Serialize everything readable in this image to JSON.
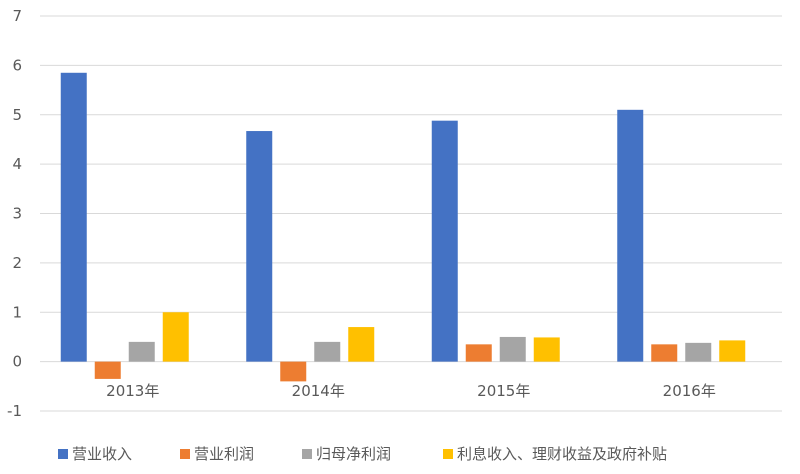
{
  "chart_data": {
    "type": "bar",
    "title": "",
    "xlabel": "",
    "ylabel": "",
    "categories": [
      "2013年",
      "2014年",
      "2015年",
      "2016年"
    ],
    "series": [
      {
        "name": "营业收入",
        "color": "#4472C4",
        "values": [
          5.85,
          4.67,
          4.88,
          5.1
        ]
      },
      {
        "name": "营业利润",
        "color": "#ED7D31",
        "values": [
          -0.35,
          -0.4,
          0.35,
          0.35
        ]
      },
      {
        "name": "归母净利润",
        "color": "#A5A5A5",
        "values": [
          0.4,
          0.4,
          0.5,
          0.38
        ]
      },
      {
        "name": "利息收入、理财收益及政府补贴",
        "color": "#FFC000",
        "values": [
          1.0,
          0.7,
          0.49,
          0.43
        ]
      }
    ],
    "ylim": [
      -1,
      7
    ],
    "yticks": [
      -1,
      0,
      1,
      2,
      3,
      4,
      5,
      6,
      7
    ],
    "grid": true,
    "legend_position": "bottom"
  }
}
